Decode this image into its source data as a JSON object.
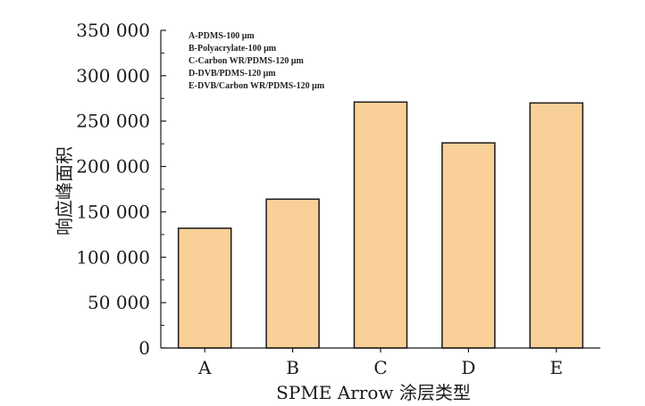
{
  "chart_data": {
    "type": "bar",
    "categories": [
      "A",
      "B",
      "C",
      "D",
      "E"
    ],
    "values": [
      132000,
      164000,
      271000,
      226000,
      270000
    ],
    "xlabel": "SPME Arrow 涂层类型",
    "ylabel": "响应峰面积",
    "ylim": [
      0,
      350000
    ],
    "yticks": [
      "0",
      "50 000",
      "100 000",
      "150 000",
      "200 000",
      "250 000",
      "300 000",
      "350 000"
    ],
    "ytick_values": [
      0,
      50000,
      100000,
      150000,
      200000,
      250000,
      300000,
      350000
    ],
    "legend_text": [
      "A-PDMS-100 μm",
      "B-Polyacrylate-100 μm",
      "C-Carbon WR/PDMS-120 μm",
      "D-DVB/PDMS-120 μm",
      "E-DVB/Carbon WR/PDMS-120 μm"
    ],
    "legend_position": "top-left",
    "grid": false,
    "bar_color": "#F8D098",
    "bar_edge_color": "#1a1a1a"
  }
}
